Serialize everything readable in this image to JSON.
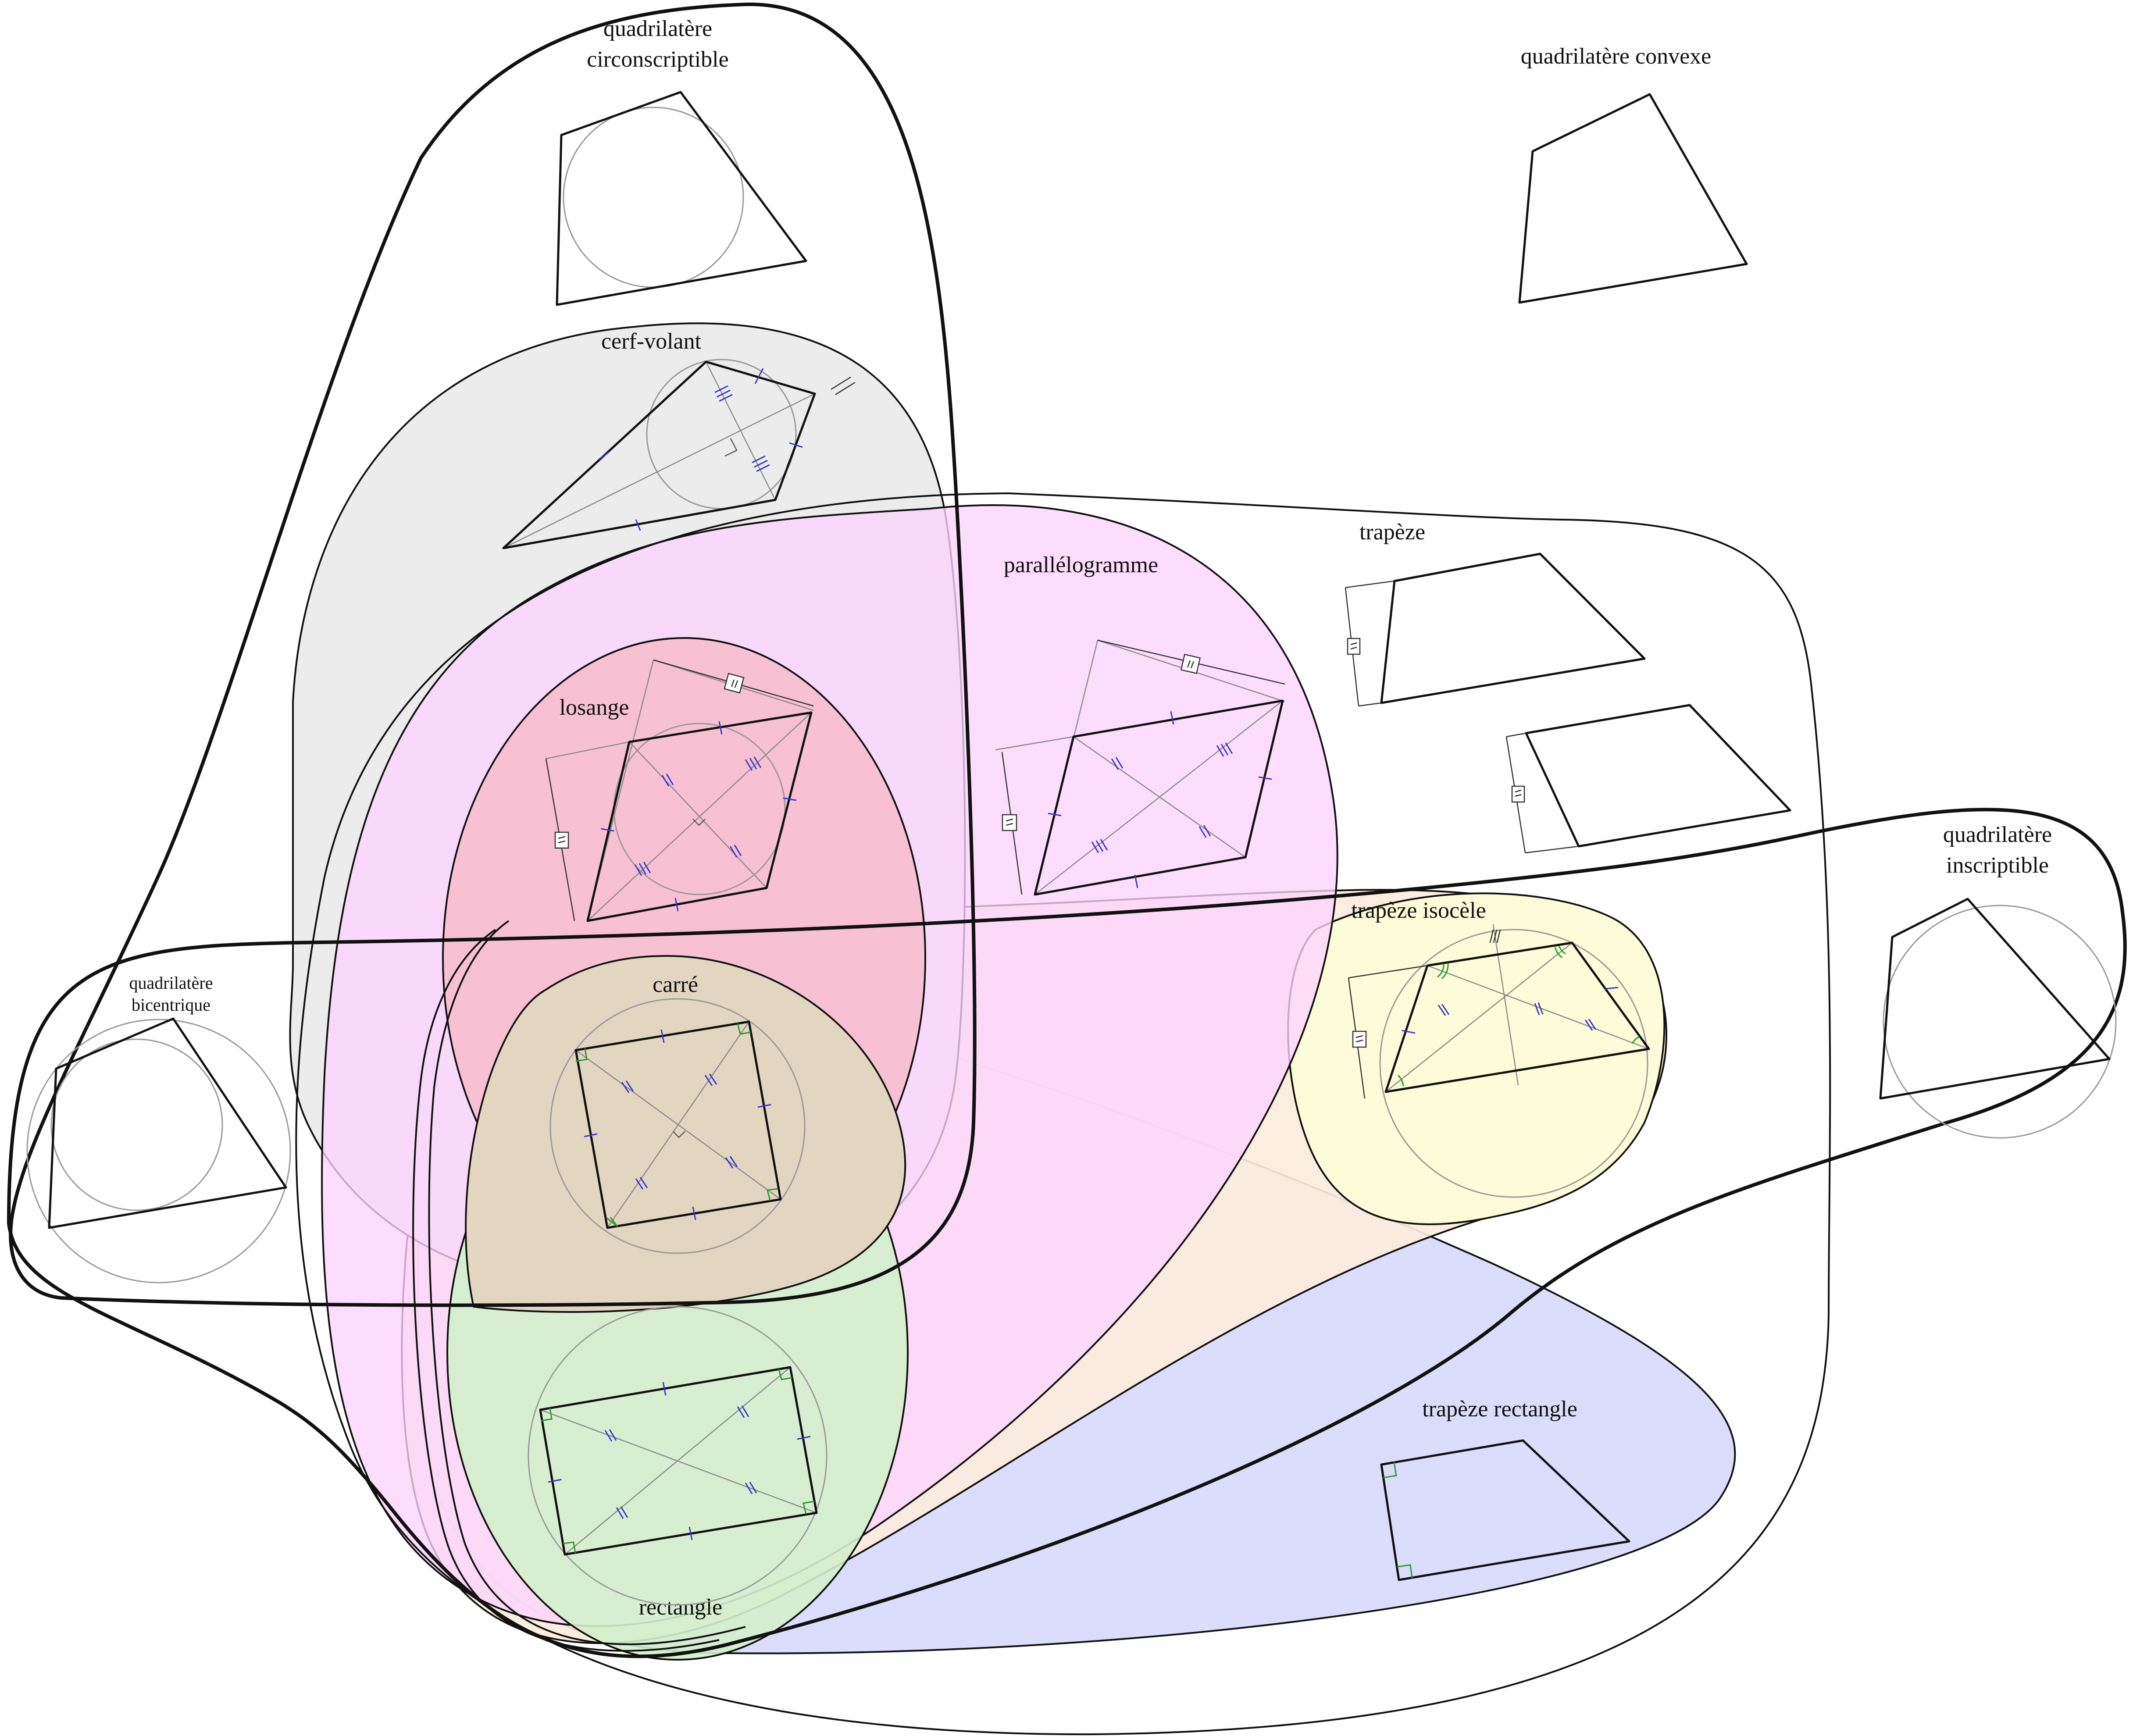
{
  "labels": {
    "quadrilatere_circonscriptible_l1": "quadrilatère",
    "quadrilatere_circonscriptible_l2": "circonscriptible",
    "quadrilatere_convexe": "quadrilatère convexe",
    "cerf_volant": "cerf-volant",
    "trapeze": "trapèze",
    "parallelogramme": "parallélogramme",
    "losange": "losange",
    "quadrilatere_inscriptible_l1": "quadrilatère",
    "quadrilatere_inscriptible_l2": "inscriptible",
    "trapeze_isocele": "trapèze isocèle",
    "quadrilatere_bicentrique_l1": "quadrilatère",
    "quadrilatere_bicentrique_l2": "bicentrique",
    "carre": "carré",
    "trapeze_rectangle": "trapèze rectangle",
    "rectangle": "rectangle"
  },
  "colors": {
    "cerf_volant_region": "#ececec",
    "parallelogramme_region": "#fcd4fc",
    "losange_region": "#f8bccc",
    "trapeze_isocele_region": "#fcfcd8",
    "isosceles_trapezoid_family_region": "#fbecdc",
    "rectangle_region": "#d4f0cc",
    "trapeze_rectangle_region": "#dcdcfc",
    "carre_region": "#e2d6c0",
    "length_marks": "#3838c8",
    "angle_marks": "#2a9a2a"
  },
  "icons": {
    "parallel_marker": "parallel-mark-icon",
    "right_angle_marker": "right-angle-icon"
  }
}
